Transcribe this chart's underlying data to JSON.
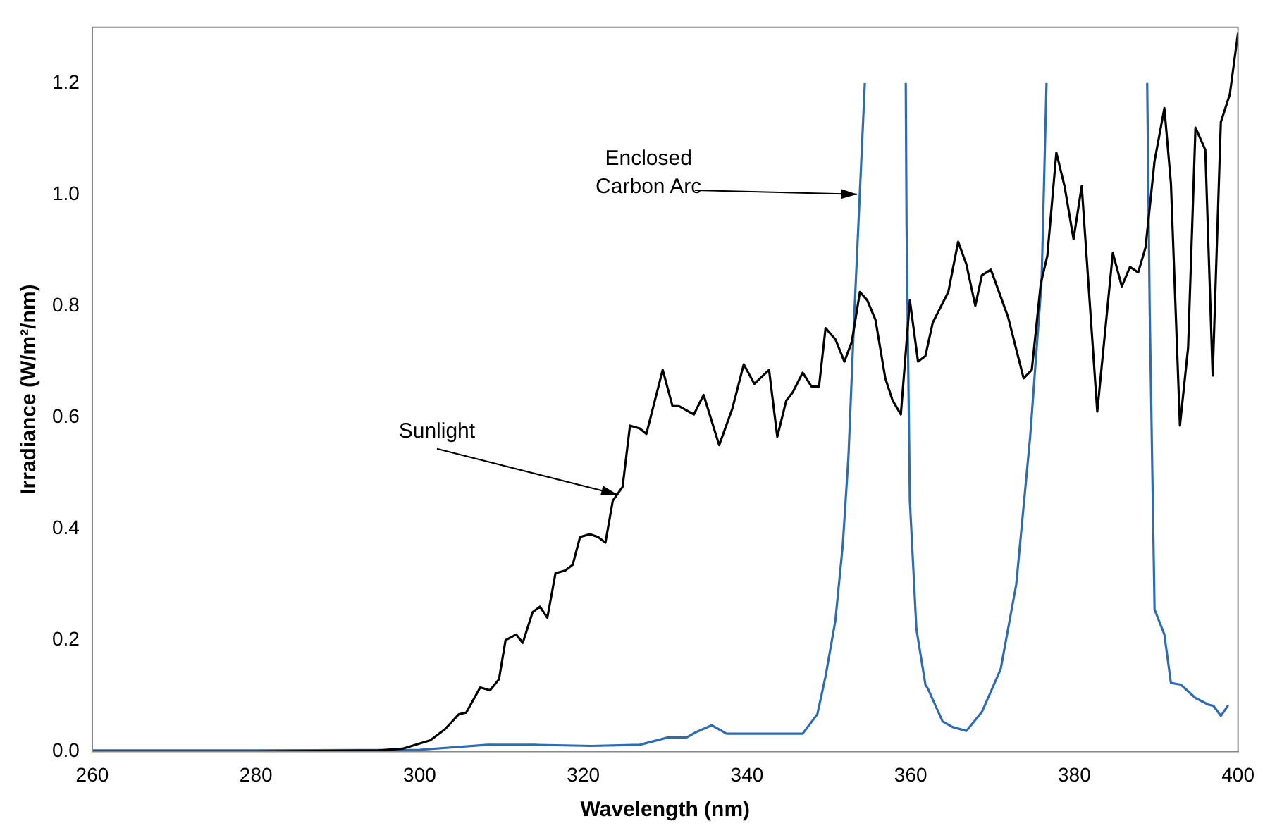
{
  "chart_data": {
    "type": "line",
    "xlabel": "Wavelength (nm)",
    "ylabel": "Irradiance (W/m²/nm)",
    "xlim": [
      260,
      400
    ],
    "ylim": [
      0,
      1.3
    ],
    "xticks": [
      260,
      280,
      300,
      320,
      340,
      360,
      380,
      400
    ],
    "yticks": [
      {
        "value": 0,
        "label": "0.0"
      },
      {
        "value": 0.2,
        "label": "0.2"
      },
      {
        "value": 0.4,
        "label": "0.4"
      },
      {
        "value": 0.6,
        "label": "0.6"
      },
      {
        "value": 0.8,
        "label": "0.8"
      },
      {
        "value": 1.0,
        "label": "1.0"
      },
      {
        "value": 1.2,
        "label": "1.2"
      }
    ],
    "grid": false,
    "legend": false,
    "marker": "none",
    "line_style": "solid",
    "annotations": [
      {
        "text": "Sunlight",
        "x": 324.5,
        "y": 0.46
      },
      {
        "text": "Enclosed Carbon Arc",
        "x": 353.8,
        "y": 1.0
      }
    ],
    "series": [
      {
        "color": "#000000",
        "x": [
          260,
          280,
          295,
          297.9,
          301.3,
          303.1,
          304.8,
          305.7,
          307.4,
          308.6,
          309.7,
          310.5,
          311.8,
          312.6,
          313.8,
          314.7,
          315.6,
          316.6,
          317.8,
          318.7,
          319.6,
          320.8,
          321.8,
          322.7,
          323.6,
          324.8,
          325.7,
          326.9,
          327.7,
          329.7,
          330.9,
          331.7,
          333.5,
          334.7,
          336.6,
          338.2,
          339.6,
          340.9,
          342.7,
          343.7,
          344.8,
          345.6,
          346.8,
          347.9,
          348.8,
          349.6,
          350.8,
          351.9,
          352.8,
          353.8,
          354.7,
          355.7,
          356.9,
          357.8,
          358.8,
          359.9,
          360.9,
          361.8,
          362.7,
          364.6,
          365.8,
          366.8,
          367.9,
          368.7,
          369.8,
          371.9,
          373.8,
          374.8,
          375.9,
          376.7,
          377.8,
          378.8,
          379.9,
          380.9,
          382.8,
          384.7,
          385.8,
          386.8,
          387.8,
          388.7,
          389.8,
          391.0,
          391.8,
          392.9,
          393.9,
          394.8,
          396.0,
          396.9,
          397.9,
          399.0,
          400
        ],
        "values": [
          0,
          0,
          0.002,
          0.005,
          0.02,
          0.04,
          0.067,
          0.07,
          0.115,
          0.11,
          0.13,
          0.2,
          0.21,
          0.195,
          0.25,
          0.26,
          0.24,
          0.32,
          0.325,
          0.335,
          0.385,
          0.39,
          0.385,
          0.375,
          0.45,
          0.475,
          0.585,
          0.58,
          0.57,
          0.685,
          0.62,
          0.62,
          0.605,
          0.64,
          0.55,
          0.615,
          0.695,
          0.66,
          0.685,
          0.565,
          0.63,
          0.645,
          0.68,
          0.655,
          0.655,
          0.76,
          0.74,
          0.7,
          0.735,
          0.825,
          0.81,
          0.775,
          0.67,
          0.63,
          0.605,
          0.81,
          0.7,
          0.71,
          0.77,
          0.825,
          0.915,
          0.875,
          0.8,
          0.855,
          0.865,
          0.78,
          0.67,
          0.685,
          0.84,
          0.89,
          1.075,
          1.015,
          0.92,
          1.015,
          0.61,
          0.895,
          0.835,
          0.87,
          0.86,
          0.905,
          1.06,
          1.155,
          1.02,
          0.585,
          0.725,
          1.12,
          1.08,
          0.675,
          1.13,
          1.18,
          1.29
        ]
      },
      {
        "color": "#2e6bb5",
        "x": [
          260,
          280,
          300,
          308.3,
          314,
          321,
          326.9,
          330.3,
          332.6,
          333.8,
          335.7,
          337.5,
          341.3,
          344.8,
          346.8,
          348.6,
          349.6,
          350.8,
          351.7,
          352.4,
          353.1,
          354.4,
          355.6,
          356.3,
          356.6,
          356.9,
          358,
          359.4,
          359.5,
          359.9,
          360.7,
          361.8,
          362.1,
          363.9,
          365.1,
          366.8,
          368.7,
          371.0,
          372.9,
          374.6,
          376.0,
          376.6,
          383,
          388.9,
          389.2,
          389.8,
          391.0,
          391.8,
          393.0,
          394.8,
          396.4,
          397.0,
          397.9,
          398.8
        ],
        "values": [
          0.002,
          0.002,
          0.003,
          0.012,
          0.012,
          0.01,
          0.012,
          0.025,
          0.025,
          0.035,
          0.047,
          0.032,
          0.032,
          0.032,
          0.032,
          0.067,
          0.135,
          0.235,
          0.37,
          0.53,
          0.78,
          1.2,
          null,
          null,
          null,
          null,
          null,
          1.2,
          0.94,
          0.45,
          0.22,
          0.12,
          0.113,
          0.054,
          0.044,
          0.037,
          0.071,
          0.148,
          0.3,
          0.565,
          0.845,
          1.2,
          null,
          1.2,
          0.8,
          0.255,
          0.21,
          0.123,
          0.12,
          0.096,
          0.084,
          0.082,
          0.064,
          0.083
        ]
      }
    ]
  }
}
